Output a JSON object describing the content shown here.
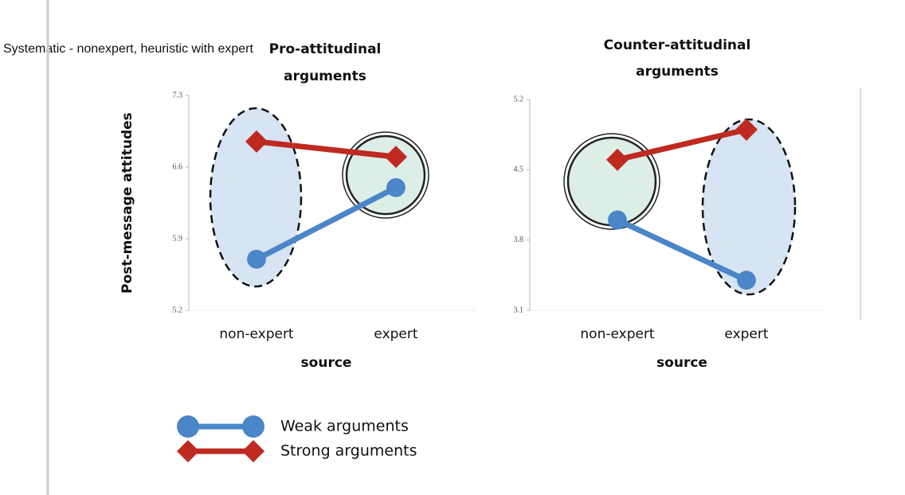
{
  "note": "Systematic - nonexpert, heuristic with expert",
  "chart_data": [
    {
      "type": "line",
      "title": "Pro-attitudinal arguments",
      "x_label": "source",
      "y_label": "Post-message attitudes",
      "categories": [
        "non-expert",
        "expert"
      ],
      "ylim": [
        5.2,
        7.3
      ],
      "yticks": [
        5.2,
        5.9,
        6.6,
        7.3
      ],
      "series": [
        {
          "name": "Weak arguments",
          "color": "#4a86c8",
          "marker": "circle",
          "values": [
            5.7,
            6.4
          ]
        },
        {
          "name": "Strong arguments",
          "color": "#bf2a20",
          "marker": "diamond",
          "values": [
            6.85,
            6.7
          ]
        }
      ]
    },
    {
      "type": "line",
      "title": "Counter-attitudinal arguments",
      "x_label": "source",
      "categories": [
        "non-expert",
        "expert"
      ],
      "ylim": [
        3.1,
        5.2
      ],
      "yticks": [
        3.1,
        3.8,
        4.5,
        5.2
      ],
      "series": [
        {
          "name": "Weak arguments",
          "color": "#4a86c8",
          "marker": "circle",
          "values": [
            4.0,
            3.4
          ]
        },
        {
          "name": "Strong arguments",
          "color": "#bf2a20",
          "marker": "diamond",
          "values": [
            4.6,
            4.9
          ]
        }
      ]
    }
  ]
}
